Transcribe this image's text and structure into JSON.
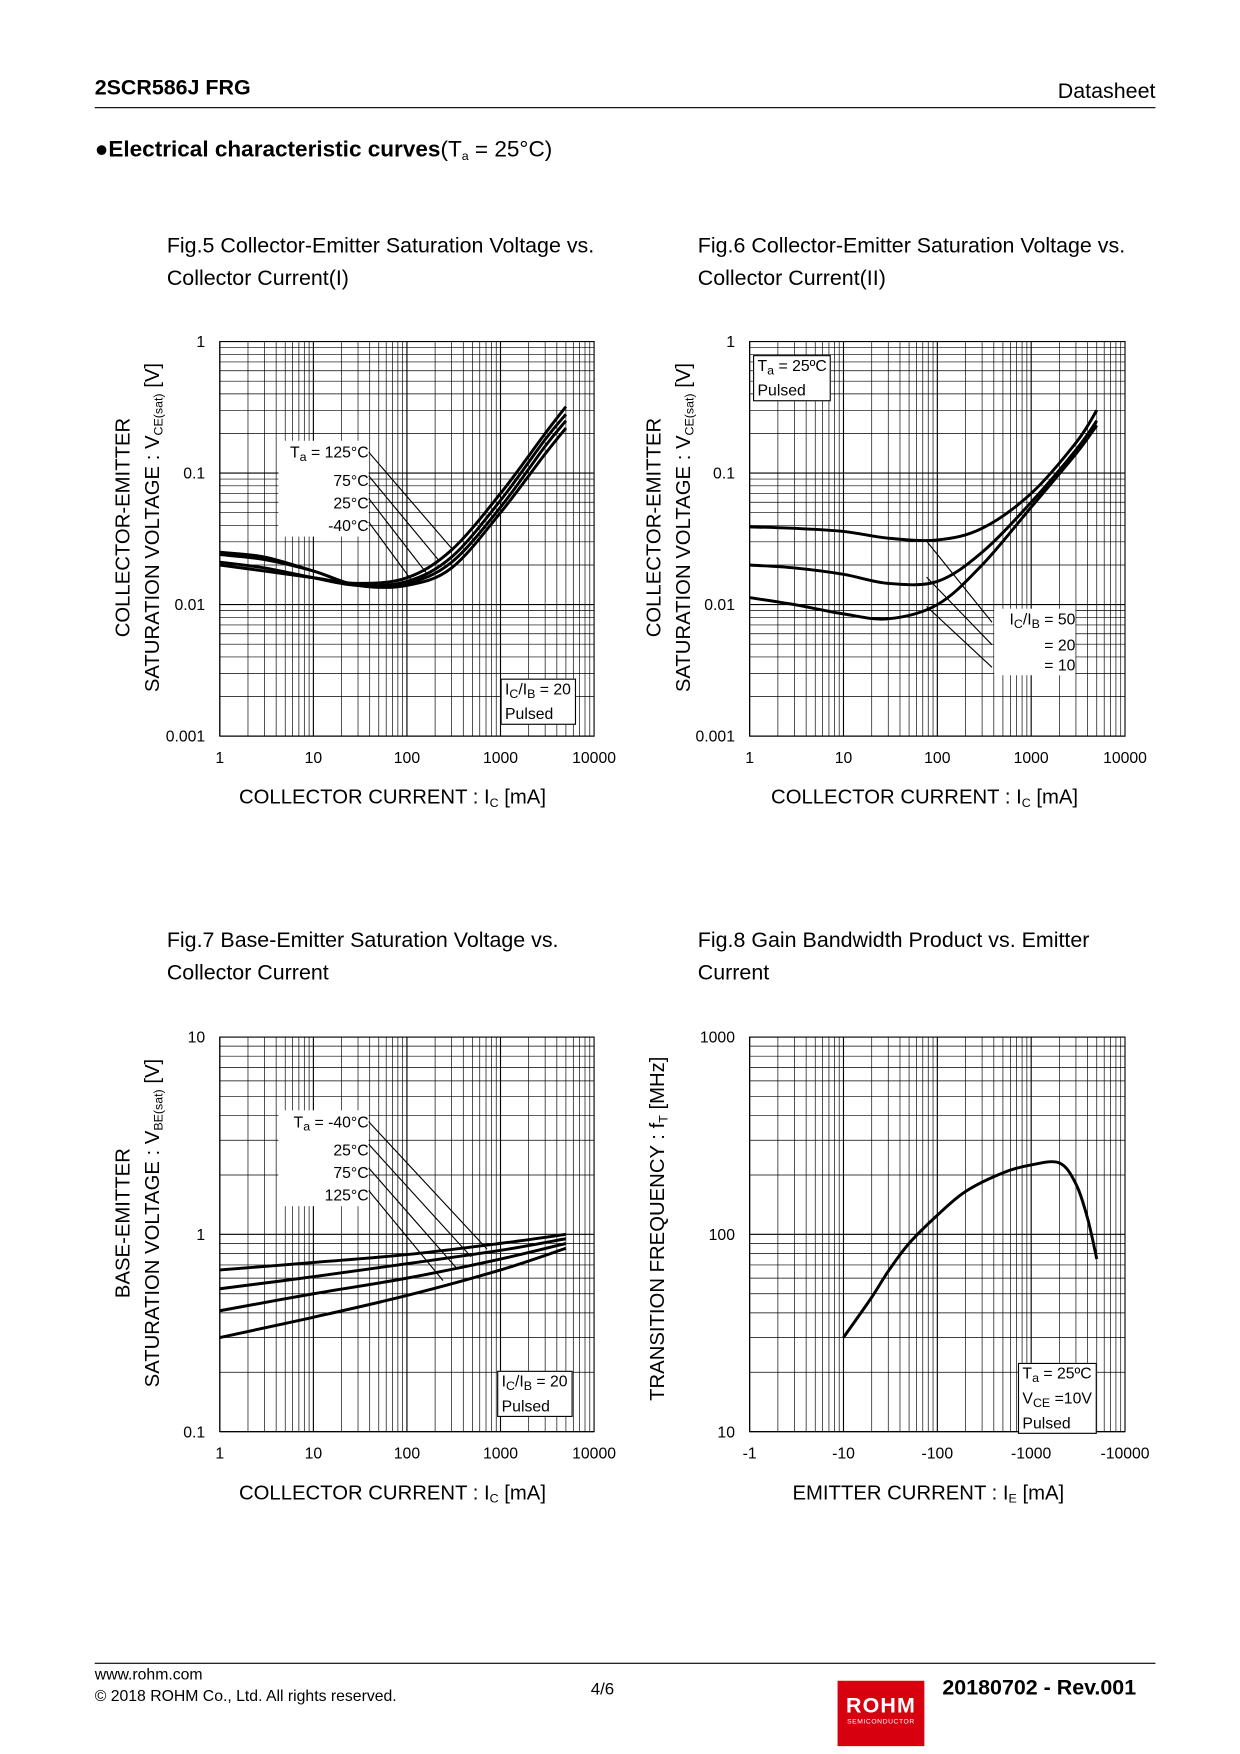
{
  "header": {
    "part": "2SCR586J FRG",
    "doc_type": "Datasheet"
  },
  "section": {
    "bullet": "●",
    "title": "Electrical characteristic curves",
    "cond_main": "(T",
    "cond_sub": "a",
    "cond_rest": " = 25°C)"
  },
  "footer": {
    "url": "www.rohm.com",
    "copyright": "© 2018 ROHM Co., Ltd. All rights reserved.",
    "page": "4/6",
    "revision": "20180702 - Rev.001",
    "logo_text": "ROHM",
    "logo_sub": "SEMICONDUCTOR",
    "logo_color": "#d7000f"
  },
  "chart_data": [
    {
      "id": "fig5",
      "type": "line",
      "title_line1": "Fig.5 Collector-Emitter Saturation Voltage vs.",
      "title_line2": "Collector Current(I)",
      "ylabel_line1": "COLLECTOR-EMITTER",
      "ylabel_line2_main": "SATURATION VOLTAGE : V",
      "ylabel_line2_sub": "CE(sat)",
      "ylabel_line2_rest": " [V]",
      "xlabel_main": "COLLECTOR CURRENT : I",
      "xlabel_sub": "C",
      "xlabel_rest": " [mA]",
      "xscale": "log",
      "yscale": "log",
      "xlim": [
        1,
        10000
      ],
      "ylim": [
        0.001,
        1
      ],
      "grid": true,
      "xticks": [
        "1",
        "10",
        "100",
        "1000",
        "10000"
      ],
      "yticks": [
        "0.001",
        "0.01",
        "0.1",
        "1"
      ],
      "legend": {
        "temp_prefix": "T",
        "temp_sub": "a",
        "labels": [
          "= 125°C",
          "75°C",
          "25°C",
          "-40°C"
        ]
      },
      "condition": {
        "line1_main": "I",
        "line1_sub1": "C",
        "line1_mid": "/I",
        "line1_sub2": "B",
        "line1_rest": " = 20",
        "line2": "Pulsed"
      },
      "x": [
        1,
        3,
        10,
        30,
        100,
        300,
        1000,
        3000,
        5000
      ],
      "series": [
        {
          "name": "125°C",
          "values": [
            0.02,
            0.018,
            0.016,
            0.0145,
            0.016,
            0.026,
            0.07,
            0.2,
            0.32
          ]
        },
        {
          "name": "75°C",
          "values": [
            0.021,
            0.019,
            0.016,
            0.014,
            0.015,
            0.023,
            0.062,
            0.18,
            0.28
          ]
        },
        {
          "name": "25°C",
          "values": [
            0.024,
            0.022,
            0.018,
            0.014,
            0.0145,
            0.021,
            0.055,
            0.16,
            0.25
          ]
        },
        {
          "name": "-40°C",
          "values": [
            0.025,
            0.023,
            0.018,
            0.014,
            0.014,
            0.019,
            0.05,
            0.14,
            0.22
          ]
        }
      ]
    },
    {
      "id": "fig6",
      "type": "line",
      "title_line1": "Fig.6 Collector-Emitter Saturation Voltage vs.",
      "title_line2": "Collector Current(II)",
      "ylabel_line1": "COLLECTOR-EMITTER",
      "ylabel_line2_main": "SATURATION VOLTAGE : V",
      "ylabel_line2_sub": "CE(sat)",
      "ylabel_line2_rest": " [V]",
      "xlabel_main": "COLLECTOR CURRENT : I",
      "xlabel_sub": "C",
      "xlabel_rest": " [mA]",
      "xscale": "log",
      "yscale": "log",
      "xlim": [
        1,
        10000
      ],
      "ylim": [
        0.001,
        1
      ],
      "grid": true,
      "xticks": [
        "1",
        "10",
        "100",
        "1000",
        "10000"
      ],
      "yticks": [
        "0.001",
        "0.01",
        "0.1",
        "1"
      ],
      "condition": {
        "line1_main": "T",
        "line1_sub1": "a",
        "line1_rest": " = 25ºC",
        "line2": "Pulsed"
      },
      "legend": {
        "prefix_main": "I",
        "prefix_sub1": "C",
        "prefix_mid": "/I",
        "prefix_sub2": "B",
        "labels": [
          "=  50",
          "= 20",
          "= 10"
        ]
      },
      "x": [
        1,
        3,
        10,
        30,
        100,
        300,
        1000,
        3000,
        5000
      ],
      "series": [
        {
          "name": "50",
          "values": [
            0.039,
            0.038,
            0.036,
            0.032,
            0.031,
            0.038,
            0.07,
            0.17,
            0.3
          ]
        },
        {
          "name": "20",
          "values": [
            0.02,
            0.019,
            0.017,
            0.0145,
            0.015,
            0.025,
            0.06,
            0.15,
            0.25
          ]
        },
        {
          "name": "10",
          "values": [
            0.0113,
            0.01,
            0.0085,
            0.0078,
            0.01,
            0.02,
            0.055,
            0.14,
            0.23
          ]
        }
      ]
    },
    {
      "id": "fig7",
      "type": "line",
      "title_line1": "Fig.7 Base-Emitter Saturation Voltage vs.",
      "title_line2": "Collector Current",
      "ylabel_line1": "BASE-EMITTER",
      "ylabel_line2_main": "SATURATION VOLTAGE : V",
      "ylabel_line2_sub": "BE(sat)",
      "ylabel_line2_rest": " [V]",
      "xlabel_main": "COLLECTOR CURRENT : I",
      "xlabel_sub": "C",
      "xlabel_rest": " [mA]",
      "xscale": "log",
      "yscale": "log",
      "xlim": [
        1,
        10000
      ],
      "ylim": [
        0.1,
        10
      ],
      "grid": true,
      "xticks": [
        "1",
        "10",
        "100",
        "1000",
        "10000"
      ],
      "yticks": [
        "0.1",
        "1",
        "10"
      ],
      "legend": {
        "temp_prefix": "T",
        "temp_sub": "a",
        "labels": [
          "= -40°C",
          "25°C",
          "75°C",
          "125°C"
        ]
      },
      "condition": {
        "line1_main": "I",
        "line1_sub1": "C",
        "line1_mid": "/I",
        "line1_sub2": "B",
        "line1_rest": " = 20",
        "line2": "Pulsed"
      },
      "x": [
        1,
        10,
        100,
        1000,
        5000
      ],
      "series": [
        {
          "name": "-40°C",
          "values": [
            0.66,
            0.72,
            0.79,
            0.9,
            1.0
          ]
        },
        {
          "name": "25°C",
          "values": [
            0.53,
            0.61,
            0.71,
            0.83,
            0.95
          ]
        },
        {
          "name": "75°C",
          "values": [
            0.41,
            0.5,
            0.6,
            0.75,
            0.9
          ]
        },
        {
          "name": "125°C",
          "values": [
            0.3,
            0.38,
            0.49,
            0.66,
            0.85
          ]
        }
      ]
    },
    {
      "id": "fig8",
      "type": "line",
      "title_line1": "Fig.8 Gain Bandwidth Product vs. Emitter",
      "title_line2": "Current",
      "ylabel_main": "TRANSITION FREQUENCY : f",
      "ylabel_sub": "T",
      "ylabel_rest": " [MHz]",
      "xlabel_main": "EMITTER CURRENT : I",
      "xlabel_sub": "E",
      "xlabel_rest": " [mA]",
      "xscale": "log",
      "yscale": "log",
      "xlim": [
        -1,
        -10000
      ],
      "ylim": [
        10,
        1000
      ],
      "grid": true,
      "xticks": [
        "-1",
        "-10",
        "-100",
        "-1000",
        "-10000"
      ],
      "yticks": [
        "10",
        "100",
        "1000"
      ],
      "condition": {
        "line1_main": "T",
        "line1_sub": "a",
        "line1_rest": " = 25ºC",
        "line2_main": "V",
        "line2_sub": "CE",
        "line2_rest": " =10V",
        "line3": "Pulsed"
      },
      "x": [
        -10,
        -20,
        -30,
        -50,
        -100,
        -200,
        -500,
        -1000,
        -2000,
        -3000,
        -4000,
        -5000
      ],
      "series": [
        {
          "values": [
            30,
            48,
            65,
            90,
            125,
            165,
            205,
            225,
            230,
            180,
            120,
            75
          ]
        }
      ]
    }
  ]
}
